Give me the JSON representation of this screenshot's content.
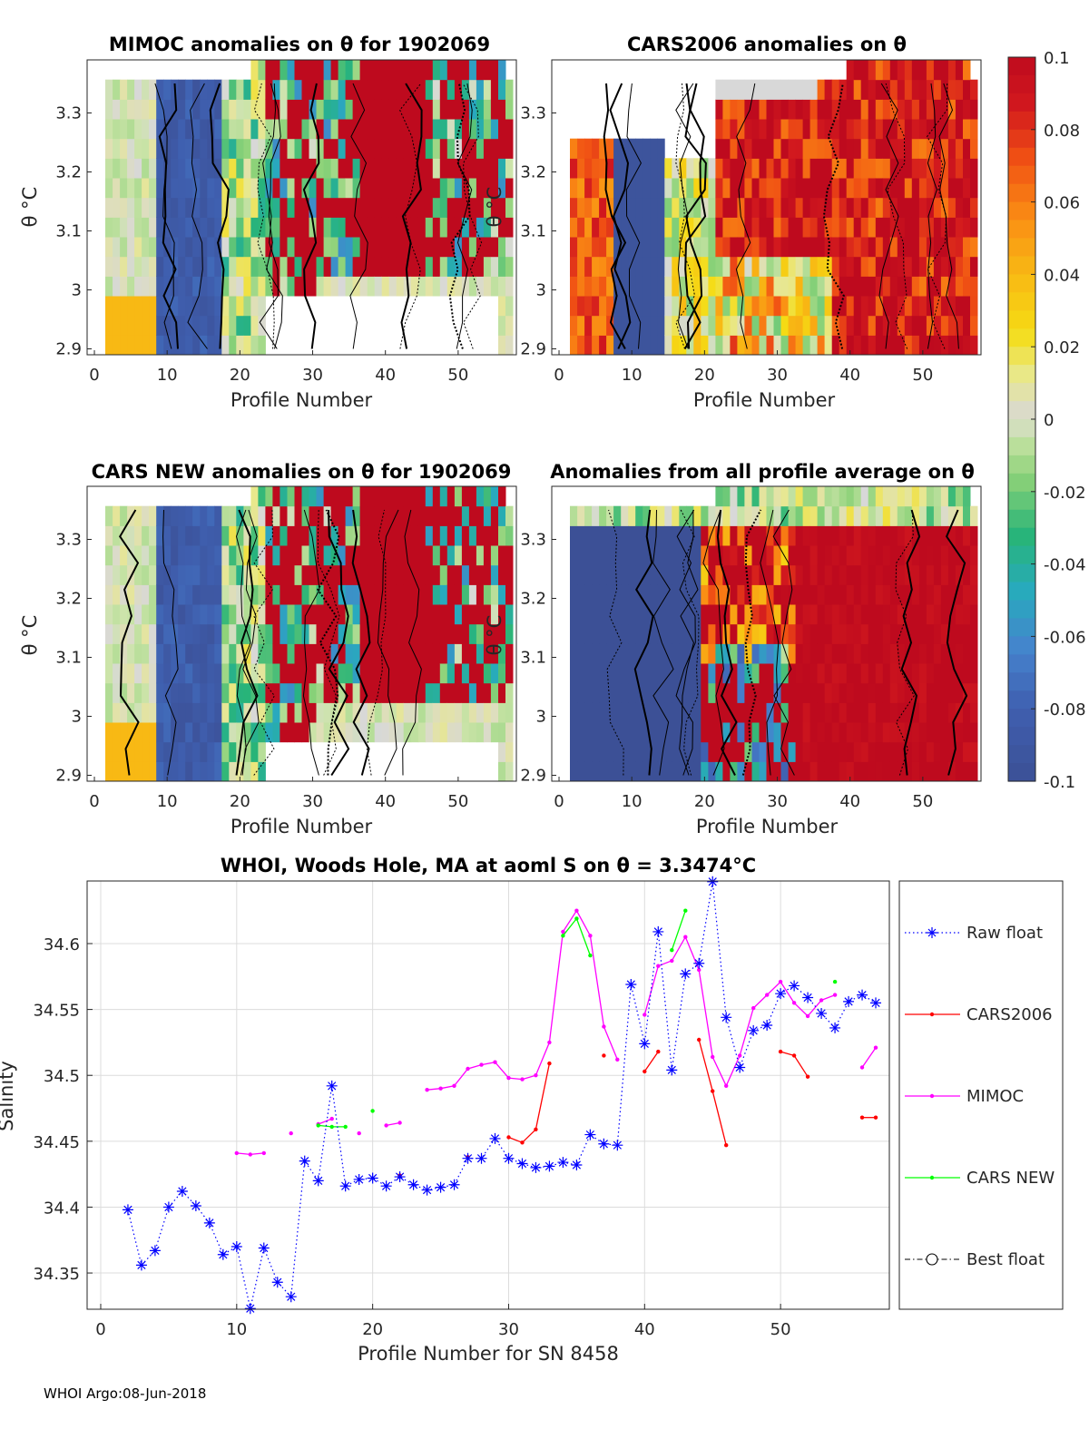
{
  "chart_data": [
    {
      "type": "heatmap",
      "title": "MIMOC anomalies on θ  for 1902069",
      "xlabel": "Profile Number",
      "ylabel": "θ °C",
      "xlim": [
        -1,
        58
      ],
      "ylim": [
        2.89,
        3.39
      ],
      "xticks": [
        "0",
        "10",
        "20",
        "30",
        "40",
        "50"
      ],
      "yticks": [
        "2.9",
        "3",
        "3.1",
        "3.2",
        "3.3"
      ]
    },
    {
      "type": "heatmap",
      "title": "CARS2006 anomalies on θ",
      "xlabel": "Profile Number",
      "ylabel": "θ °C",
      "xlim": [
        -1,
        58
      ],
      "ylim": [
        2.89,
        3.39
      ],
      "xticks": [
        "0",
        "10",
        "20",
        "30",
        "40",
        "50"
      ],
      "yticks": [
        "2.9",
        "3",
        "3.1",
        "3.2",
        "3.3"
      ]
    },
    {
      "type": "heatmap",
      "title": "CARS NEW anomalies on θ for 1902069",
      "xlabel": "Profile Number",
      "ylabel": "θ °C",
      "xlim": [
        -1,
        58
      ],
      "ylim": [
        2.89,
        3.39
      ],
      "xticks": [
        "0",
        "10",
        "20",
        "30",
        "40",
        "50"
      ],
      "yticks": [
        "2.9",
        "3",
        "3.1",
        "3.2",
        "3.3"
      ]
    },
    {
      "type": "heatmap",
      "title": "Anomalies from all profile average on θ",
      "xlabel": "Profile Number",
      "ylabel": "θ °C",
      "xlim": [
        -1,
        58
      ],
      "ylim": [
        2.89,
        3.39
      ],
      "xticks": [
        "0",
        "10",
        "20",
        "30",
        "40",
        "50"
      ],
      "yticks": [
        "2.9",
        "3",
        "3.1",
        "3.2",
        "3.3"
      ]
    },
    {
      "type": "colorbar",
      "range": [
        -0.1,
        0.1
      ],
      "ticks": [
        "0.1",
        "0.08",
        "0.06",
        "0.04",
        "0.02",
        "0",
        "-0.02",
        "-0.04",
        "-0.06",
        "-0.08",
        "-0.1"
      ],
      "tick_values": [
        0.1,
        0.08,
        0.06,
        0.04,
        0.02,
        0,
        -0.02,
        -0.04,
        -0.06,
        -0.08,
        -0.1
      ]
    },
    {
      "type": "line",
      "title": "WHOI, Woods Hole, MA at aoml S on θ = 3.3474°C",
      "xlabel": "Profile Number for SN 8458",
      "ylabel": "Salinity",
      "xlim": [
        -1,
        58
      ],
      "ylim": [
        34.3225,
        34.6475
      ],
      "xticks": [
        "0",
        "10",
        "20",
        "30",
        "40",
        "50"
      ],
      "xtick_values": [
        0,
        10,
        20,
        30,
        40,
        50
      ],
      "yticks": [
        "34.35",
        "34.4",
        "34.45",
        "34.5",
        "34.55",
        "34.6"
      ],
      "ytick_values": [
        34.35,
        34.4,
        34.45,
        34.5,
        34.55,
        34.6
      ],
      "grid": true,
      "legend_position": "right-outside",
      "series": [
        {
          "name": "Raw float",
          "color": "#0000ff",
          "x": [
            2,
            3,
            4,
            5,
            6,
            7,
            8,
            9,
            10,
            11,
            12,
            13,
            14,
            15,
            16,
            17,
            18,
            19,
            20,
            21,
            22,
            23,
            24,
            25,
            26,
            27,
            28,
            29,
            30,
            31,
            32,
            33,
            34,
            35,
            36,
            37,
            38,
            39,
            40,
            41,
            42,
            43,
            44,
            45,
            46,
            47,
            48,
            49,
            50,
            51,
            52,
            53,
            54,
            55,
            56,
            57
          ],
          "y": [
            34.398,
            34.356,
            34.367,
            34.4,
            34.412,
            34.401,
            34.388,
            34.364,
            34.37,
            34.323,
            34.369,
            34.343,
            34.332,
            34.435,
            34.42,
            34.492,
            34.416,
            34.421,
            34.422,
            34.416,
            34.423,
            34.417,
            34.413,
            34.415,
            34.417,
            34.437,
            34.437,
            34.452,
            34.437,
            34.433,
            34.43,
            34.431,
            34.434,
            34.432,
            34.455,
            34.448,
            34.447,
            34.569,
            34.524,
            34.609,
            34.504,
            34.577,
            34.585,
            34.647,
            34.544,
            34.506,
            34.534,
            34.538,
            34.562,
            34.568,
            34.559,
            34.547,
            34.536,
            34.556,
            34.561,
            34.555
          ]
        },
        {
          "name": "CARS2006",
          "color": "#ff0000",
          "segments": [
            {
              "x": [
                22
              ],
              "y": [
                34.424
              ]
            },
            {
              "x": [
                27
              ],
              "y": [
                34.438
              ]
            },
            {
              "x": [
                30,
                31,
                32,
                33
              ],
              "y": [
                34.453,
                34.449,
                34.459,
                34.509
              ]
            },
            {
              "x": [
                37
              ],
              "y": [
                34.515
              ]
            },
            {
              "x": [
                40,
                41
              ],
              "y": [
                34.503,
                34.518
              ]
            },
            {
              "x": [
                44,
                45,
                46
              ],
              "y": [
                34.527,
                34.488,
                34.447
              ]
            },
            {
              "x": [
                50,
                51,
                52
              ],
              "y": [
                34.518,
                34.515,
                34.499
              ]
            },
            {
              "x": [
                56,
                57
              ],
              "y": [
                34.468,
                34.468
              ]
            }
          ]
        },
        {
          "name": "MIMOC",
          "color": "#ff00ff",
          "segments": [
            {
              "x": [
                10,
                11,
                12
              ],
              "y": [
                34.441,
                34.44,
                34.441
              ]
            },
            {
              "x": [
                14
              ],
              "y": [
                34.456
              ]
            },
            {
              "x": [
                16,
                17
              ],
              "y": [
                34.463,
                34.467
              ]
            },
            {
              "x": [
                19
              ],
              "y": [
                34.456
              ]
            },
            {
              "x": [
                21,
                22
              ],
              "y": [
                34.462,
                34.464
              ]
            },
            {
              "x": [
                24,
                25,
                26,
                27,
                28,
                29,
                30,
                31,
                32,
                33,
                34,
                35,
                36,
                37,
                38
              ],
              "y": [
                34.489,
                34.49,
                34.492,
                34.505,
                34.508,
                34.51,
                34.498,
                34.497,
                34.5,
                34.525,
                34.609,
                34.625,
                34.606,
                34.537,
                34.512
              ]
            },
            {
              "x": [
                40,
                41,
                42,
                43,
                44,
                45,
                46,
                47,
                48,
                49,
                50,
                51,
                52,
                53,
                54
              ],
              "y": [
                34.546,
                34.583,
                34.587,
                34.605,
                34.58,
                34.514,
                34.492,
                34.515,
                34.551,
                34.561,
                34.571,
                34.555,
                34.545,
                34.557,
                34.561
              ]
            },
            {
              "x": [
                56,
                57
              ],
              "y": [
                34.506,
                34.521
              ]
            }
          ]
        },
        {
          "name": "CARS NEW",
          "color": "#00ff00",
          "segments": [
            {
              "x": [
                16,
                17,
                18
              ],
              "y": [
                34.462,
                34.461,
                34.461
              ]
            },
            {
              "x": [
                20
              ],
              "y": [
                34.473
              ]
            },
            {
              "x": [
                34,
                35,
                36
              ],
              "y": [
                34.606,
                34.619,
                34.591
              ]
            },
            {
              "x": [
                42,
                43
              ],
              "y": [
                34.595,
                34.625
              ]
            },
            {
              "x": [
                54
              ],
              "y": [
                34.571
              ]
            }
          ]
        },
        {
          "name": "Best float",
          "color": "#000000",
          "x": [],
          "y": []
        }
      ]
    }
  ],
  "footer": "WHOI Argo:08-Jun-2018"
}
